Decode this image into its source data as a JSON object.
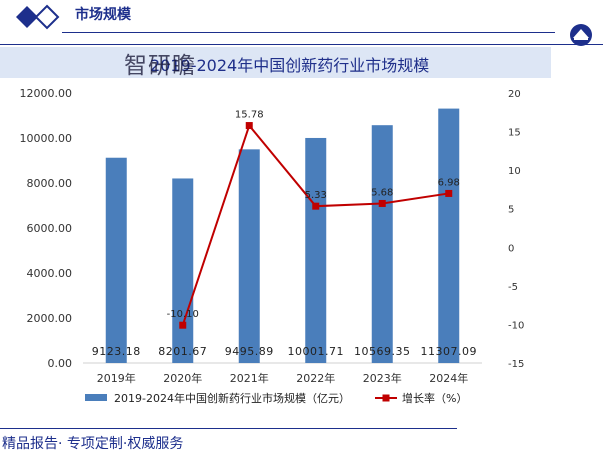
{
  "header": {
    "title": "市场规模"
  },
  "watermark": "智研瞻",
  "footer": {
    "text": "精品报告· 专项定制·权威服务"
  },
  "colors": {
    "brand": "#1d2f8c",
    "bar": "#4a7ebb",
    "line": "#c00000",
    "title_band": "#dde6f5"
  },
  "chart_data": {
    "type": "bar",
    "title": "2019-2024年中国创新药行业市场规模",
    "categories": [
      "2019年",
      "2020年",
      "2021年",
      "2022年",
      "2023年",
      "2024年"
    ],
    "series": [
      {
        "name": "2019-2024年中国创新药行业市场规模（亿元）",
        "type": "bar",
        "axis": "left",
        "values": [
          9123.18,
          8201.67,
          9495.89,
          10001.71,
          10569.35,
          11307.09
        ],
        "labels": [
          "9123.18",
          "8201.67",
          "9495.89",
          "10001.71",
          "10569.35",
          "11307.09"
        ]
      },
      {
        "name": "增长率（%）",
        "type": "line",
        "axis": "right",
        "values": [
          null,
          -10.1,
          15.78,
          5.33,
          5.68,
          6.98
        ],
        "labels": [
          "",
          "-10.10",
          "15.78",
          "5.33",
          "5.68",
          "6.98"
        ]
      }
    ],
    "y_left": {
      "lim": [
        0,
        12000
      ],
      "ticks": [
        0,
        2000,
        4000,
        6000,
        8000,
        10000,
        12000
      ],
      "tick_labels": [
        "0.00",
        "2000.00",
        "4000.00",
        "6000.00",
        "8000.00",
        "10000.00",
        "12000.00"
      ]
    },
    "y_right": {
      "lim": [
        -15,
        20
      ],
      "ticks": [
        -15,
        -10,
        -5,
        0,
        5,
        10,
        15,
        20
      ],
      "tick_labels": [
        "-15",
        "-10",
        "-5",
        "0",
        "5",
        "10",
        "15",
        "20"
      ]
    },
    "grid": false,
    "legend_position": "bottom"
  }
}
